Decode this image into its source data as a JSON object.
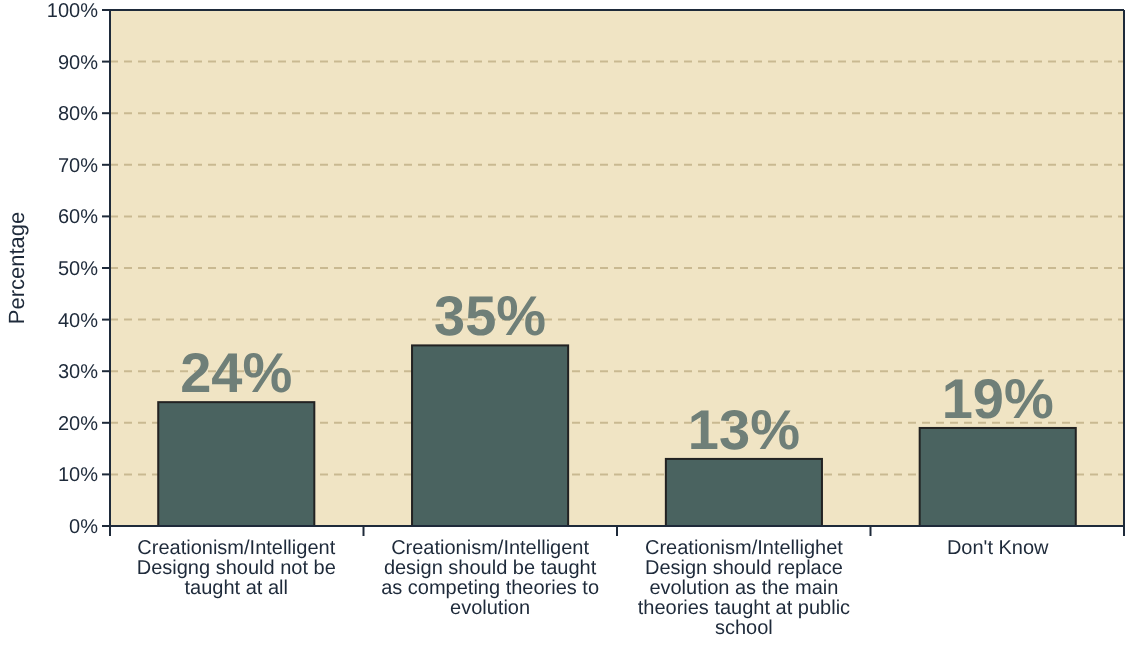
{
  "chart_data": {
    "type": "bar",
    "ylabel": "Percentage",
    "categories": [
      "Creationism/Intelligent Designg should not be taught at all",
      "Creationism/Intelligent design should be taught as competing theories to evolution",
      "Creationism/Intellighet Design should replace evolution as the main theories taught at public school",
      "Don't Know"
    ],
    "values": [
      24,
      35,
      13,
      19
    ],
    "color": "#4a6360",
    "value_labels": [
      "24%",
      "35%",
      "13%",
      "19%"
    ],
    "ylim": [
      0,
      100
    ],
    "yticks": [
      {
        "value": 0,
        "label": "0%"
      },
      {
        "value": 10,
        "label": "10%"
      },
      {
        "value": 20,
        "label": "20%"
      },
      {
        "value": 30,
        "label": "30%"
      },
      {
        "value": 40,
        "label": "40%"
      },
      {
        "value": 50,
        "label": "50%"
      },
      {
        "value": 60,
        "label": "60%"
      },
      {
        "value": 70,
        "label": "70%"
      },
      {
        "value": 80,
        "label": "80%"
      },
      {
        "value": 90,
        "label": "90%"
      },
      {
        "value": 100,
        "label": "100%"
      }
    ],
    "grid": "y"
  }
}
